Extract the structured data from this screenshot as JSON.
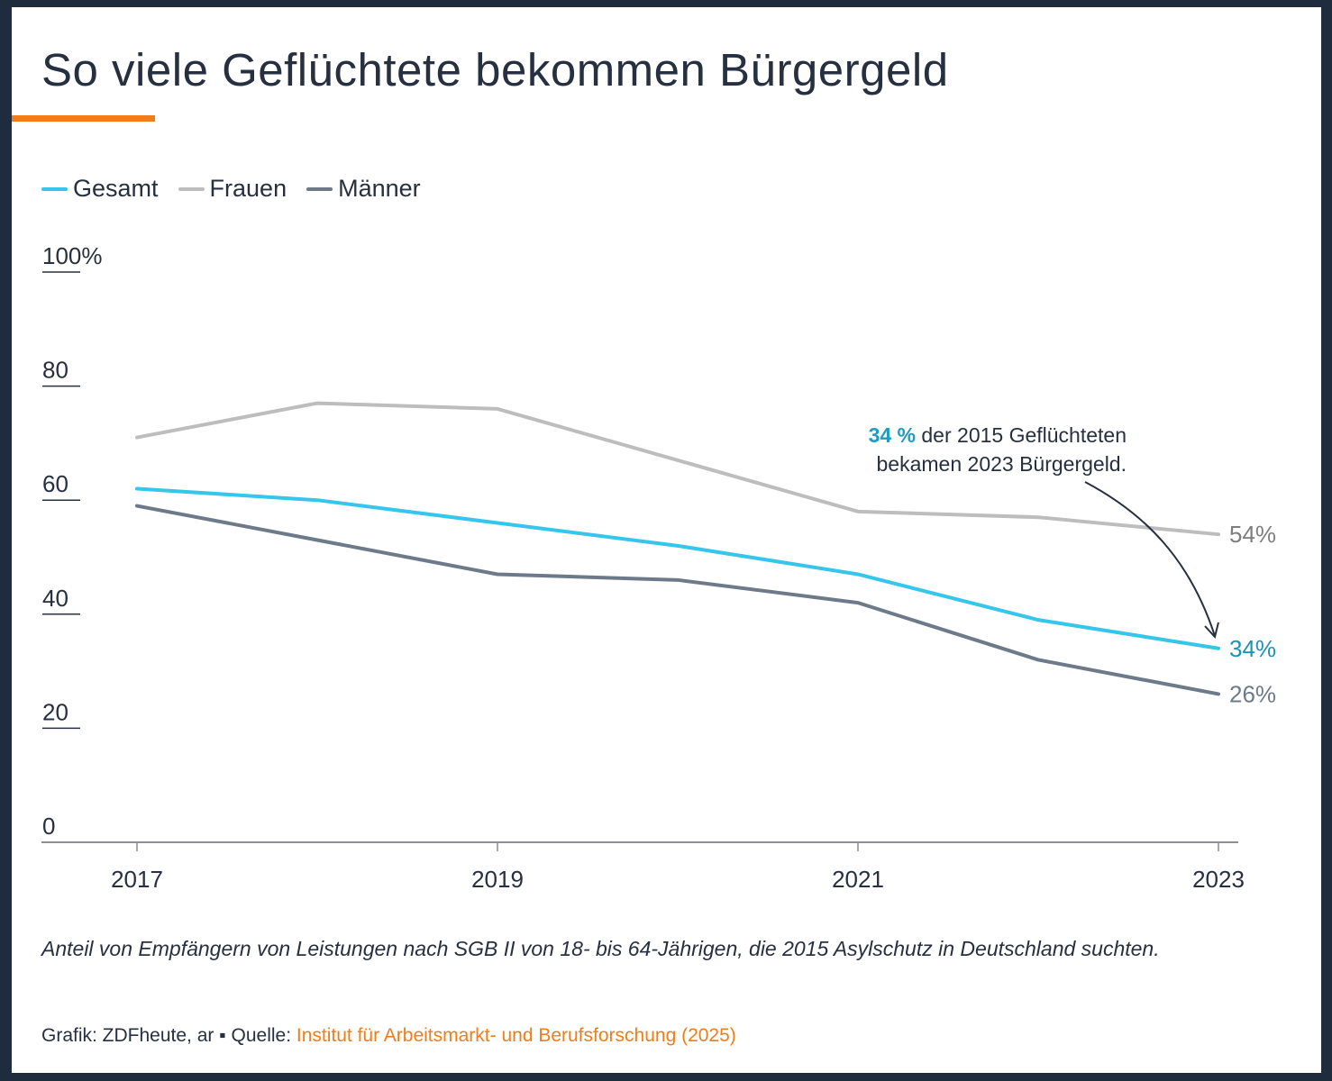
{
  "title": "So viele Geflüchtete bekommen Bürgergeld",
  "colors": {
    "accent": "#f07d19",
    "frame": "#1e2c3d",
    "text": "#263040",
    "gesamt": "#36c5eb",
    "frauen": "#bdbdbd",
    "maenner": "#6c7a89",
    "gesamt_label": "#1a93b8",
    "frauen_label": "#7d7d7d",
    "maenner_label": "#6c7a89",
    "annotation_highlight": "#1f9bc4"
  },
  "legend": [
    {
      "label": "Gesamt",
      "key": "gesamt"
    },
    {
      "label": "Frauen",
      "key": "frauen"
    },
    {
      "label": "Männer",
      "key": "maenner"
    }
  ],
  "annotation": {
    "highlight": "34 %",
    "line1_rest": " der 2015 Geflüchteten",
    "line2": "bekamen 2023 Bürgergeld."
  },
  "caption": "Anteil von Empfängern von Leistungen nach SGB II von 18- bis 64-Jährigen, die 2015 Asylschutz in Deutschland suchten.",
  "source": {
    "prefix": "Grafik: ZDFheute, ar",
    "separator": " ▪ ",
    "label": "Quelle: ",
    "link_text": "Institut für Arbeitsmarkt- und Berufsforschung (2025)"
  },
  "chart_data": {
    "type": "line",
    "title": "So viele Geflüchtete bekommen Bürgergeld",
    "xlabel": "",
    "ylabel": "",
    "x": [
      2017,
      2018,
      2019,
      2020,
      2021,
      2022,
      2023
    ],
    "x_tick_labels": [
      "2017",
      "2019",
      "2021",
      "2023"
    ],
    "x_ticks": [
      2017,
      2019,
      2021,
      2023
    ],
    "y_tick_labels": [
      "100%",
      "80",
      "60",
      "40",
      "20",
      "0"
    ],
    "y_ticks": [
      100,
      80,
      60,
      40,
      20,
      0
    ],
    "ylim": [
      0,
      100
    ],
    "xlim": [
      2016.5,
      2023.1
    ],
    "grid": false,
    "legend_position": "top-left",
    "series": [
      {
        "name": "Frauen",
        "key": "frauen",
        "values": [
          71,
          77,
          76,
          67,
          58,
          57,
          54
        ],
        "end_label": "54%"
      },
      {
        "name": "Gesamt",
        "key": "gesamt",
        "values": [
          62,
          60,
          56,
          52,
          47,
          39,
          34
        ],
        "end_label": "34%"
      },
      {
        "name": "Männer",
        "key": "maenner",
        "values": [
          59,
          53,
          47,
          46,
          42,
          32,
          26
        ],
        "end_label": "26%"
      }
    ],
    "annotations": [
      {
        "text": "34 % der 2015 Geflüchteten bekamen 2023 Bürgergeld.",
        "points_to": {
          "series": "Gesamt",
          "x": 2023,
          "y": 34
        }
      }
    ]
  }
}
